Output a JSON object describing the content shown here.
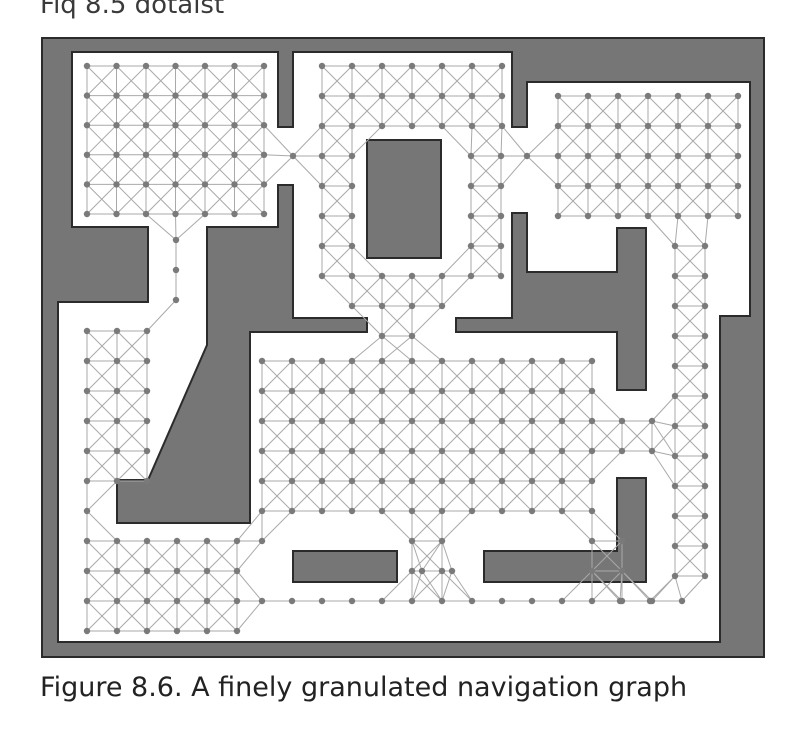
{
  "header_fragment": "Fiq 8.5 dotaist",
  "caption": "Figure 8.6. A finely granulated navigation graph",
  "colors": {
    "wall": "#767676",
    "border": "#2b2b2b",
    "floor": "#ffffff",
    "edge": "#a9a9a9",
    "node": "#7a7a7a"
  }
}
